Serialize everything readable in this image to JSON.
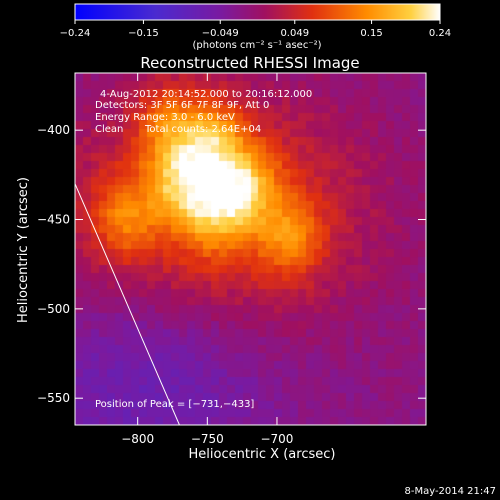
{
  "chart_data": {
    "type": "heatmap",
    "title": "Reconstructed RHESSI Image",
    "xlabel": "Heliocentric X (arcsec)",
    "ylabel": "Heliocentric Y (arcsec)",
    "xlim": [
      -845,
      -593
    ],
    "ylim": [
      -565,
      -368
    ],
    "x_ticks": [
      -800,
      -750,
      -700
    ],
    "x_tick_labels": [
      "−800",
      "−750",
      "−700"
    ],
    "y_ticks": [
      -400,
      -450,
      -500,
      -550
    ],
    "y_tick_labels": [
      "−400",
      "−450",
      "−500",
      "−550"
    ],
    "colorbar": {
      "range": [
        -0.24,
        0.24
      ],
      "ticks": [
        -0.24,
        -0.15,
        -0.049,
        0.049,
        0.15,
        0.24
      ],
      "tick_labels": [
        "−0.24",
        "−0.15",
        "−0.049",
        "0.049",
        "0.15",
        "0.24"
      ],
      "unit_label": "(photons cm⁻² s⁻¹ asec⁻²)"
    },
    "peak": [
      -731,
      -433
    ],
    "annotations": {
      "time": "4-Aug-2012 20:14:52.000 to 20:16:12.000",
      "detectors": "Detectors: 3F 5F 6F 7F 8F 9F, Att 0",
      "energy": "Energy Range: 3.0 - 6.0 keV",
      "method": "Clean",
      "counts": "Total counts: 2.64E+04",
      "peak_text": "Position of Peak = [−731,−433]"
    },
    "sources": [
      {
        "x": -748,
        "y": -405,
        "amp": 0.23
      },
      {
        "x": -772,
        "y": -428,
        "amp": 0.21
      },
      {
        "x": -722,
        "y": -430,
        "amp": 0.22
      },
      {
        "x": -745,
        "y": -445,
        "amp": 0.2
      },
      {
        "x": -690,
        "y": -460,
        "amp": 0.17
      },
      {
        "x": -810,
        "y": -450,
        "amp": 0.16
      },
      {
        "x": -780,
        "y": -395,
        "amp": 0.16
      }
    ],
    "limb_line": [
      [
        -845,
        -430
      ],
      [
        -770,
        -565
      ]
    ],
    "colormap": "hot-blue-purple",
    "grid": false
  },
  "footer_date": "8-May-2014 21:47"
}
